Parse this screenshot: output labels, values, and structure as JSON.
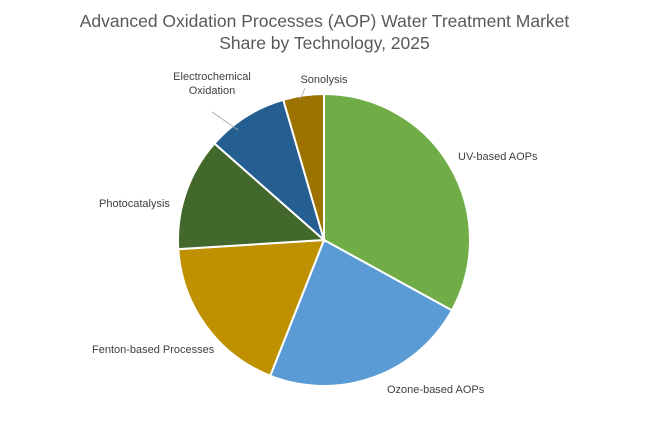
{
  "chart_data": {
    "type": "pie",
    "title_lines": [
      "Advanced Oxidation Processes (AOP) Water Treatment Market",
      "Share by Technology, 2025"
    ],
    "start_angle_deg": 0,
    "direction": "clockwise",
    "slices": [
      {
        "label": "UV-based AOPs",
        "value": 33,
        "color": "#70ad47"
      },
      {
        "label": "Ozone-based AOPs",
        "value": 23,
        "color": "#5b9bd5"
      },
      {
        "label": "Fenton-based Processes",
        "value": 18,
        "color": "#bf9000"
      },
      {
        "label": "Photocatalysis",
        "value": 12.5,
        "color": "#43682b"
      },
      {
        "label": "Electrochemical Oxidation",
        "label_lines": [
          "Electrochemical",
          "Oxidation"
        ],
        "value": 9,
        "color": "#255e91"
      },
      {
        "label": "Sonolysis",
        "value": 4.5,
        "color": "#9e7201"
      }
    ]
  }
}
